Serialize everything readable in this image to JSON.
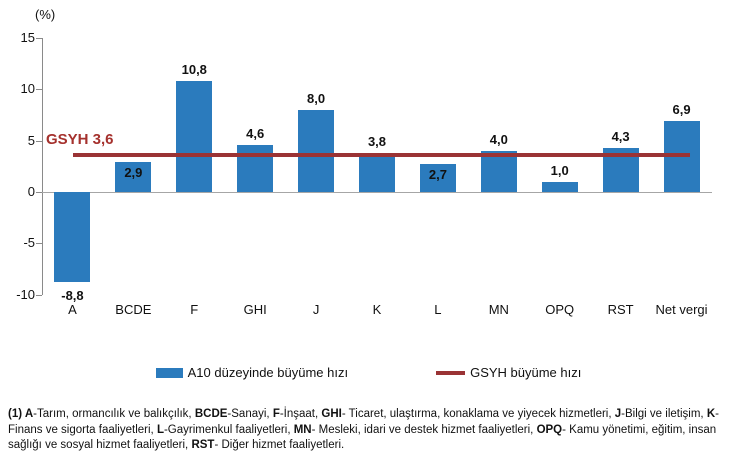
{
  "chart_data": {
    "type": "bar",
    "title": "",
    "unit_label": "(%)",
    "categories": [
      "A",
      "BCDE",
      "F",
      "GHI",
      "J",
      "K",
      "L",
      "MN",
      "OPQ",
      "RST",
      "Net vergi"
    ],
    "series": [
      {
        "name": "A10 düzeyinde büyüme hızı",
        "type": "bar",
        "color": "#2b7bbd",
        "values": [
          -8.8,
          2.9,
          10.8,
          4.6,
          8.0,
          3.8,
          2.7,
          4.0,
          1.0,
          4.3,
          6.9
        ],
        "value_labels": [
          "-8,8",
          "2,9",
          "10,8",
          "4,6",
          "8,0",
          "3,8",
          "2,7",
          "4,0",
          "1,0",
          "4,3",
          "6,9"
        ]
      },
      {
        "name": "GSYH büyüme hızı",
        "type": "line",
        "color": "#9a3335",
        "value": 3.6,
        "label": "GSYH 3,6",
        "label_color": "#a5312d"
      }
    ],
    "y_ticks": [
      15,
      10,
      5,
      0,
      -5,
      -10
    ],
    "ylim": [
      -10,
      15
    ],
    "grid": false,
    "legend_position": "bottom-center"
  },
  "legend": {
    "items": [
      {
        "label": "A10 düzeyinde büyüme hızı",
        "swatch": "bar",
        "color": "#2b7bbd"
      },
      {
        "label": "GSYH büyüme hızı",
        "swatch": "line",
        "color": "#9a3335"
      }
    ]
  },
  "footnote": {
    "segments": [
      {
        "text": "(1) ",
        "bold": true
      },
      {
        "text": "A",
        "bold": true
      },
      {
        "text": "-Tarım, ormancılık ve balıkçılık, ",
        "bold": false
      },
      {
        "text": "BCDE",
        "bold": true
      },
      {
        "text": "-Sanayi, ",
        "bold": false
      },
      {
        "text": "F",
        "bold": true
      },
      {
        "text": "-İnşaat, ",
        "bold": false
      },
      {
        "text": "GHI",
        "bold": true
      },
      {
        "text": "- Ticaret, ulaştırma, konaklama ve yiyecek hizmetleri, ",
        "bold": false
      },
      {
        "text": "J",
        "bold": true
      },
      {
        "text": "-Bilgi ve iletişim, ",
        "bold": false
      },
      {
        "text": "K",
        "bold": true
      },
      {
        "text": "-Finans ve sigorta faaliyetleri, ",
        "bold": false
      },
      {
        "text": "L",
        "bold": true
      },
      {
        "text": "-Gayrimenkul faaliyetleri, ",
        "bold": false
      },
      {
        "text": "MN",
        "bold": true
      },
      {
        "text": "- Mesleki, idari ve destek hizmet faaliyetleri, ",
        "bold": false
      },
      {
        "text": "OPQ",
        "bold": true
      },
      {
        "text": "- Kamu yönetimi, eğitim, insan sağlığı ve sosyal hizmet faaliyetleri, ",
        "bold": false
      },
      {
        "text": "RST",
        "bold": true
      },
      {
        "text": "- Diğer hizmet faaliyetleri.",
        "bold": false
      }
    ]
  }
}
